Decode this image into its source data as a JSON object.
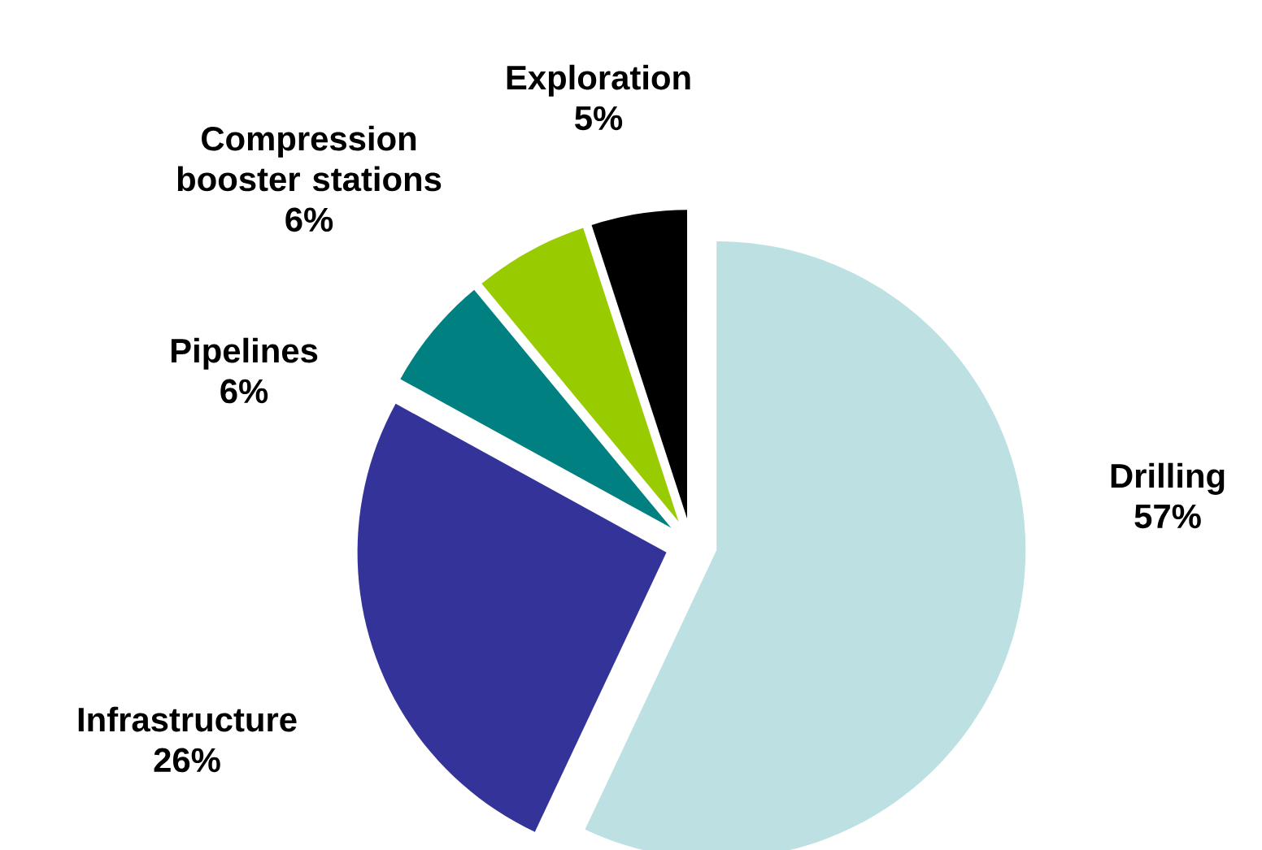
{
  "chart_data": {
    "type": "pie",
    "categories": [
      "Drilling",
      "Infrastructure",
      "Pipelines",
      "Compression booster stations",
      "Exploration"
    ],
    "values": [
      57,
      26,
      6,
      6,
      5
    ],
    "value_labels": [
      "57%",
      "26%",
      "6%",
      "6%",
      "5%"
    ],
    "colors": [
      "#bde0e3",
      "#333399",
      "#008080",
      "#99cc00",
      "#000000"
    ]
  }
}
